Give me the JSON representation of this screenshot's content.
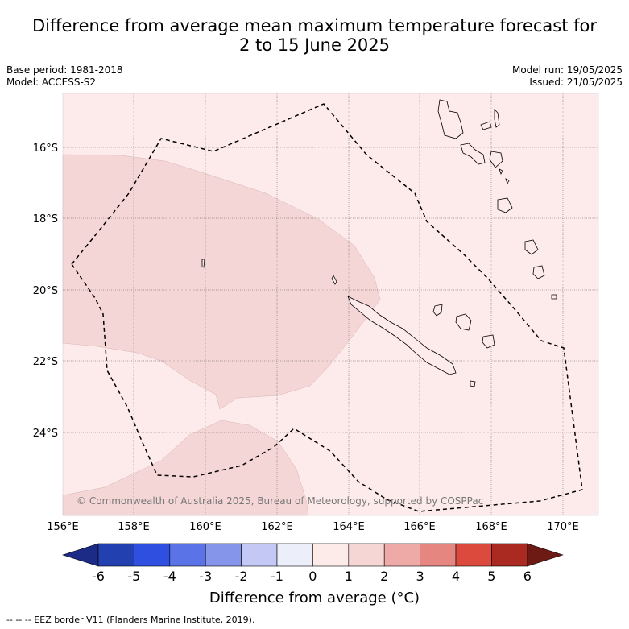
{
  "title_line1": "Difference from average mean maximum temperature forecast for",
  "title_line2": "2 to 15 June 2025",
  "base_period": "Base period: 1981-2018",
  "model": "Model: ACCESS-S2",
  "model_run": "Model run: 19/05/2025",
  "issued": "Issued: 21/05/2025",
  "copyright": "© Commonwealth of Australia 2025, Bureau of Meteorology, supported by COSPPac",
  "lat_labels": [
    "16°S",
    "18°S",
    "20°S",
    "22°S",
    "24°S"
  ],
  "lon_labels": [
    "156°E",
    "158°E",
    "160°E",
    "162°E",
    "164°E",
    "166°E",
    "168°E",
    "170°E"
  ],
  "colorbar": {
    "ticks": [
      "-6",
      "-5",
      "-4",
      "-3",
      "-2",
      "-1",
      "0",
      "1",
      "2",
      "3",
      "4",
      "5",
      "6"
    ],
    "colors": [
      "#1c2b85",
      "#2340b0",
      "#2f4fe0",
      "#5a73e6",
      "#8595ea",
      "#c3c8f4",
      "#eceef9",
      "#fdebea",
      "#f6d5d5",
      "#eeaaa7",
      "#e68680",
      "#dc4a3e",
      "#aa2a22",
      "#6e1a14"
    ],
    "label": "Difference from average (°C)"
  },
  "footnote": "-- -- -- EEZ border V11 (Flanders Marine Institute, 2019).",
  "map_colors": {
    "background": "#fcebea",
    "anomaly_1_2": "#f5d6d6"
  }
}
